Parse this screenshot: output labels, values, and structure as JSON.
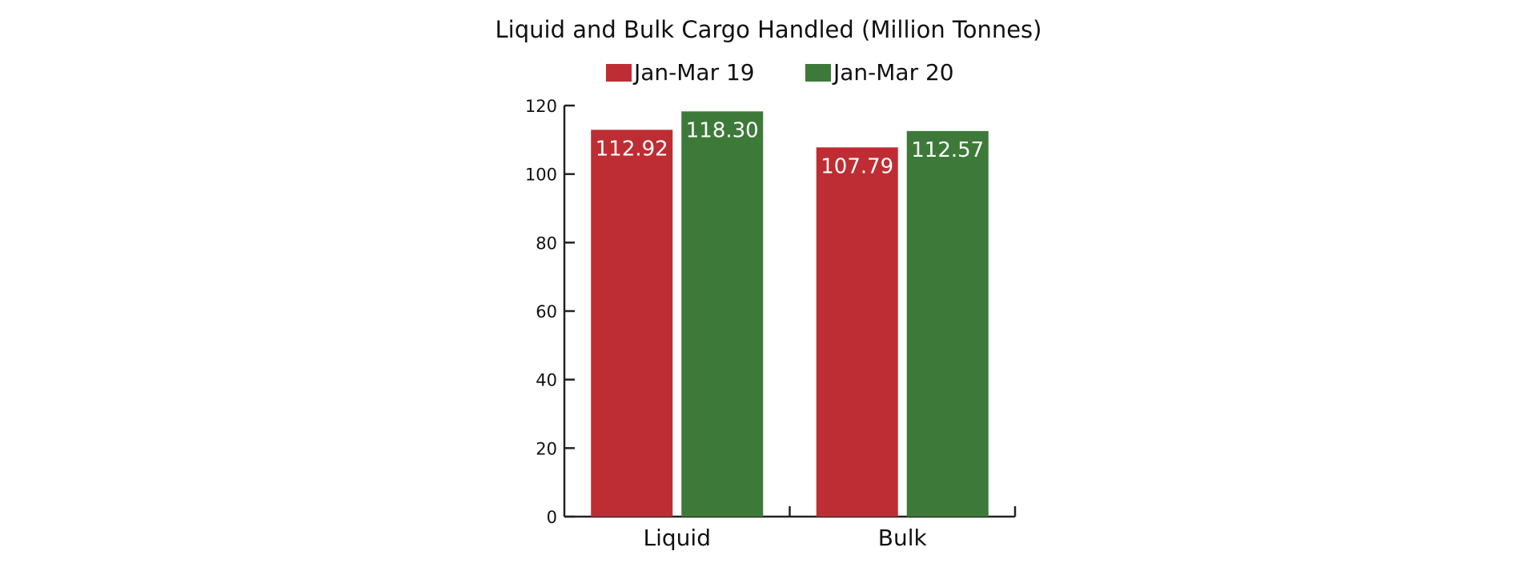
{
  "chart_data": {
    "type": "bar",
    "title": "Liquid and Bulk Cargo Handled (Million Tonnes)",
    "categories": [
      "Liquid",
      "Bulk"
    ],
    "series": [
      {
        "name": "Jan-Mar 19",
        "values": [
          112.92,
          107.79
        ],
        "labels": [
          "112.92",
          "107.79"
        ],
        "color": "#be2d33"
      },
      {
        "name": "Jan-Mar 20",
        "values": [
          118.3,
          112.57
        ],
        "labels": [
          "118.30",
          "112.57"
        ],
        "color": "#3d7a3a"
      }
    ],
    "y_ticks": [
      "0",
      "20",
      "40",
      "60",
      "80",
      "100",
      "120"
    ],
    "ylim": [
      0,
      120
    ],
    "xlabel": "",
    "ylabel": "",
    "grid": false,
    "legend": "top-center"
  }
}
